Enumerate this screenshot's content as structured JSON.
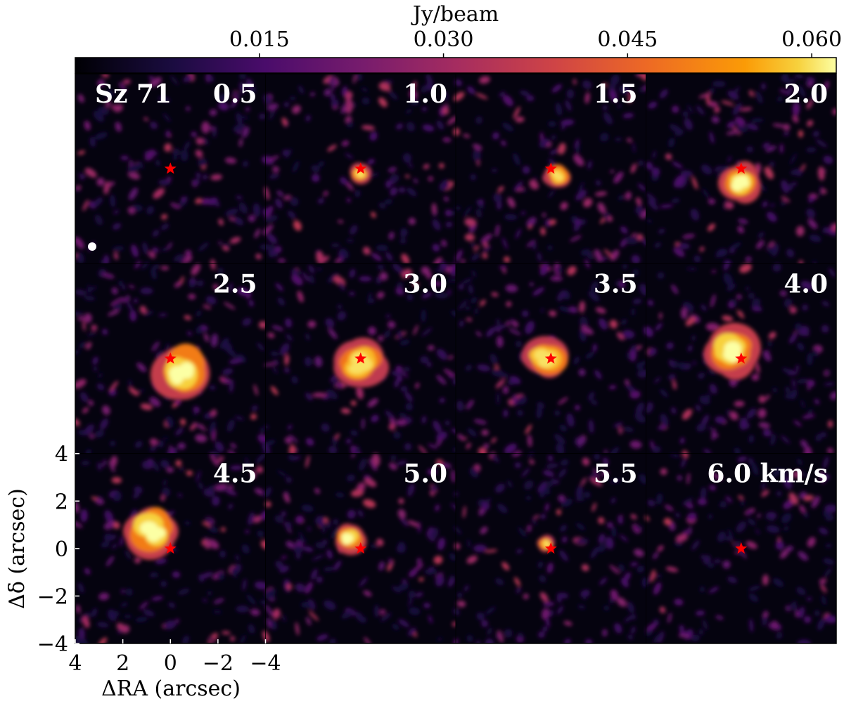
{
  "chart_data": {
    "type": "heatmap",
    "layout": "channel-map grid, 3 rows x 4 columns",
    "source_label": "Sz 71",
    "colorbar": {
      "label": "Jy/beam",
      "tick_values": [
        0.015,
        0.03,
        0.045,
        0.06
      ],
      "tick_labels": [
        "0.015",
        "0.030",
        "0.045",
        "0.060"
      ],
      "range": [
        0.0,
        0.062
      ],
      "colormap": "inferno-like (black to purple to orange to pale yellow)",
      "placement": "top"
    },
    "panels": [
      {
        "velocity": 0.5,
        "label": "0.5",
        "peak_jy_beam": 0.02,
        "emission_offset_arcsec": [
          0.0,
          0.0
        ],
        "extent_arcsec": 0.0
      },
      {
        "velocity": 1.0,
        "label": "1.0",
        "peak_jy_beam": 0.06,
        "emission_offset_arcsec": [
          0.0,
          -0.2
        ],
        "extent_arcsec": 0.6
      },
      {
        "velocity": 1.5,
        "label": "1.5",
        "peak_jy_beam": 0.06,
        "emission_offset_arcsec": [
          -0.3,
          -0.3
        ],
        "extent_arcsec": 0.8
      },
      {
        "velocity": 2.0,
        "label": "2.0",
        "peak_jy_beam": 0.062,
        "emission_offset_arcsec": [
          0.0,
          -0.6
        ],
        "extent_arcsec": 1.2
      },
      {
        "velocity": 2.5,
        "label": "2.5",
        "peak_jy_beam": 0.062,
        "emission_offset_arcsec": [
          -0.5,
          -0.5
        ],
        "extent_arcsec": 1.8
      },
      {
        "velocity": 3.0,
        "label": "3.0",
        "peak_jy_beam": 0.06,
        "emission_offset_arcsec": [
          0.0,
          -0.2
        ],
        "extent_arcsec": 1.6
      },
      {
        "velocity": 3.5,
        "label": "3.5",
        "peak_jy_beam": 0.06,
        "emission_offset_arcsec": [
          0.2,
          0.0
        ],
        "extent_arcsec": 1.4
      },
      {
        "velocity": 4.0,
        "label": "4.0",
        "peak_jy_beam": 0.062,
        "emission_offset_arcsec": [
          0.4,
          0.4
        ],
        "extent_arcsec": 1.6
      },
      {
        "velocity": 4.5,
        "label": "4.5",
        "peak_jy_beam": 0.062,
        "emission_offset_arcsec": [
          0.8,
          0.8
        ],
        "extent_arcsec": 1.6
      },
      {
        "velocity": 5.0,
        "label": "5.0",
        "peak_jy_beam": 0.062,
        "emission_offset_arcsec": [
          0.5,
          0.4
        ],
        "extent_arcsec": 0.9
      },
      {
        "velocity": 5.5,
        "label": "5.5",
        "peak_jy_beam": 0.06,
        "emission_offset_arcsec": [
          0.2,
          0.2
        ],
        "extent_arcsec": 0.5
      },
      {
        "velocity": 6.0,
        "label": "6.0 km/s",
        "peak_jy_beam": 0.02,
        "emission_offset_arcsec": [
          0.0,
          0.0
        ],
        "extent_arcsec": 0.0
      }
    ],
    "xaxis": {
      "label": "ΔRA (arcsec)",
      "range": [
        4,
        -4
      ],
      "tick_values": [
        4,
        2,
        0,
        -2,
        -4
      ],
      "tick_labels": [
        "4",
        "2",
        "0",
        "−2",
        "−4"
      ]
    },
    "yaxis": {
      "label": "Δδ (arcsec)",
      "range": [
        -4,
        4
      ],
      "tick_values": [
        4,
        2,
        0,
        -2,
        -4
      ],
      "tick_labels": [
        "4",
        "2",
        "0",
        "−2",
        "−4"
      ]
    },
    "star_marker": {
      "x": 0,
      "y": 0,
      "color": "#ff0000",
      "symbol": "star"
    },
    "beam": {
      "color": "#ffffff",
      "shape": "ellipse"
    },
    "grid": false
  }
}
